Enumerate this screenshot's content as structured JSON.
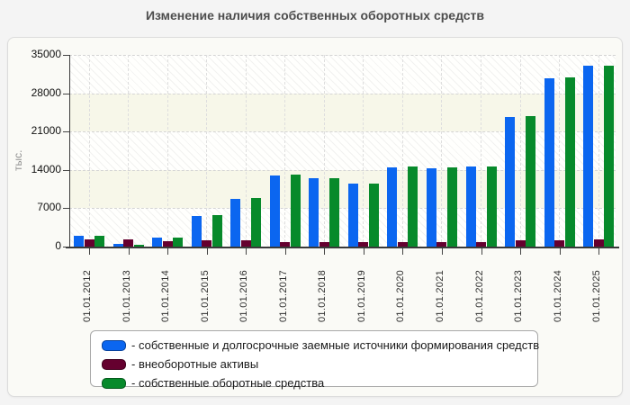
{
  "title": "Изменение наличия собственных оборотных средств",
  "colors": {
    "series_blue": "#0b66f0",
    "series_maroon": "#65002f",
    "series_green": "#078a2b",
    "panel_bg": "#fafaf6",
    "band_bg": "#f7f7e9",
    "legend_bg": "#ffffff"
  },
  "chart_data": {
    "type": "bar",
    "categories": [
      "01.01.2012",
      "01.01.2013",
      "01.01.2014",
      "01.01.2015",
      "01.01.2016",
      "01.01.2017",
      "01.01.2018",
      "01.01.2019",
      "01.01.2020",
      "01.01.2021",
      "01.01.2022",
      "01.01.2023",
      "01.01.2024",
      "01.01.2025"
    ],
    "series": [
      {
        "name": "собственные и долгосрочные заемные источники формирования средств",
        "color": "#0b66f0",
        "values": [
          1900,
          450,
          1700,
          5550,
          8650,
          13050,
          12500,
          11500,
          14450,
          14250,
          14650,
          23700,
          30800,
          33000
        ]
      },
      {
        "name": "внеоборотные активы",
        "color": "#65002f",
        "values": [
          1300,
          1300,
          1000,
          1200,
          1200,
          850,
          850,
          850,
          850,
          850,
          900,
          1100,
          1200,
          1300
        ]
      },
      {
        "name": "собственные оборотные средства",
        "color": "#078a2b",
        "values": [
          2000,
          350,
          1700,
          5750,
          8800,
          13150,
          12450,
          11500,
          14650,
          14400,
          14550,
          23800,
          30850,
          32950
        ]
      }
    ],
    "title": "Изменение наличия собственных оборотных средств",
    "xlabel": "",
    "ylabel": "тыс.",
    "ylim": [
      0,
      35000
    ],
    "yticks": [
      0,
      7000,
      14000,
      21000,
      28000,
      35000
    ],
    "grid": true,
    "legend_position": "bottom"
  },
  "legend": {
    "items": [
      {
        "label": "- собственные и долгосрочные заемные источники формирования средств"
      },
      {
        "label": "- внеоборотные активы"
      },
      {
        "label": "- собственные оборотные средства"
      }
    ]
  }
}
